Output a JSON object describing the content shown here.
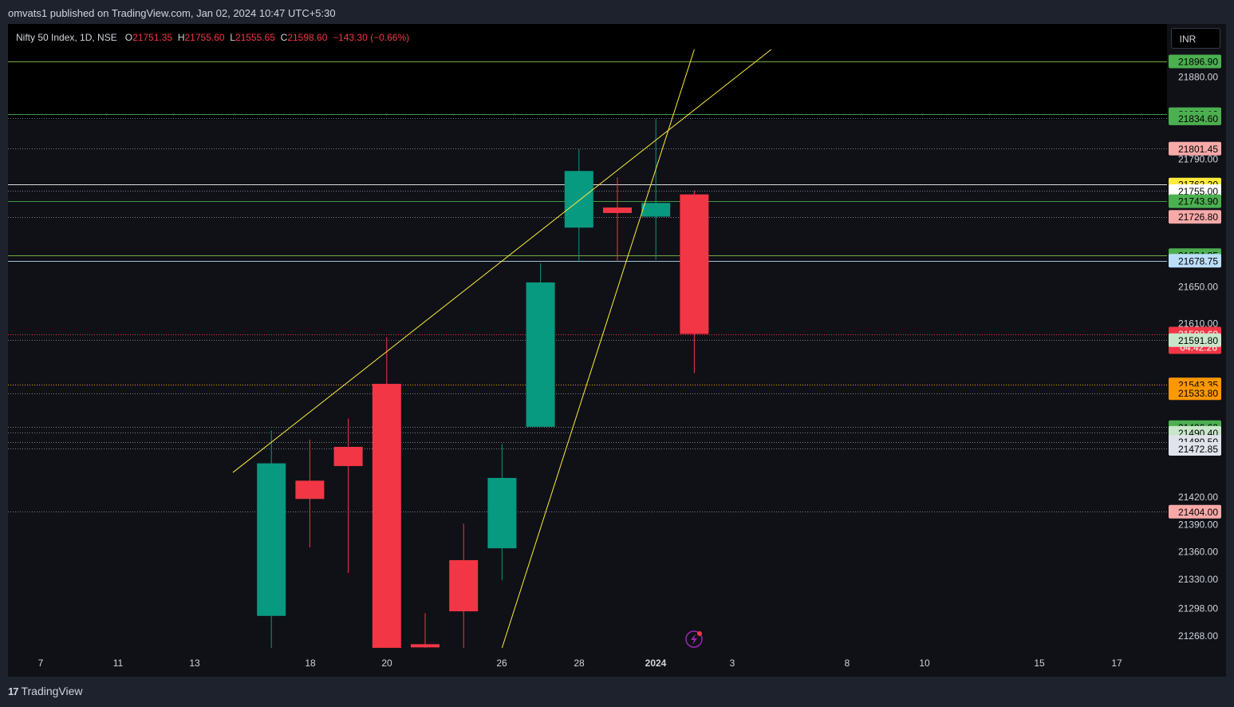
{
  "header": {
    "published": "omvats1 published on TradingView.com, Jan 02, 2024 10:47 UTC+5:30"
  },
  "legend": {
    "symbol": "Nifty 50 Index, 1D, NSE",
    "o_label": "O",
    "o_val": "21751.35",
    "h_label": "H",
    "h_val": "21755.60",
    "l_label": "L",
    "l_val": "21555.65",
    "c_label": "C",
    "c_val": "21598.60",
    "change": "−143.30 (−0.66%)"
  },
  "currency_button": "INR",
  "footer": {
    "brand": "TradingView"
  },
  "chart_data": {
    "type": "candlestick",
    "title": "Nifty 50 Index, 1D, NSE",
    "currency": "INR",
    "x_tick_labels": [
      "7",
      "11",
      "13",
      "18",
      "20",
      "26",
      "28",
      "2024",
      "3",
      "8",
      "10",
      "15",
      "17"
    ],
    "y_tick_labels": [
      "21880.00",
      "21790.00",
      "21650.00",
      "21610.00",
      "21420.00",
      "21390.00",
      "21360.00",
      "21330.00",
      "21298.00",
      "21268.00"
    ],
    "candles": [
      {
        "date": "2023-12-15",
        "open": 21290,
        "high": 21493,
        "low": 21255,
        "close": 21457
      },
      {
        "date": "2023-12-18",
        "open": 21438,
        "high": 21483,
        "low": 21365,
        "close": 21418
      },
      {
        "date": "2023-12-19",
        "open": 21475,
        "high": 21506,
        "low": 21337,
        "close": 21454
      },
      {
        "date": "2023-12-20",
        "open": 21544,
        "high": 21595,
        "low": 21255,
        "close": 21255
      },
      {
        "date": "2023-12-21",
        "open": 21259,
        "high": 21293,
        "low": 21255,
        "close": 21258
      },
      {
        "date": "2023-12-22",
        "open": 21351,
        "high": 21391,
        "low": 21255,
        "close": 21295
      },
      {
        "date": "2023-12-26",
        "open": 21364,
        "high": 21478,
        "low": 21329,
        "close": 21441
      },
      {
        "date": "2023-12-27",
        "open": 21497,
        "high": 21676,
        "low": 21497,
        "close": 21655
      },
      {
        "date": "2023-12-28",
        "open": 21715,
        "high": 21801,
        "low": 21678,
        "close": 21777
      },
      {
        "date": "2023-12-29",
        "open": 21737,
        "high": 21770,
        "low": 21678,
        "close": 21731
      },
      {
        "date": "2024-01-01",
        "open": 21727,
        "high": 21834,
        "low": 21680,
        "close": 21742
      },
      {
        "date": "2024-01-02",
        "open": 21751.35,
        "high": 21755.6,
        "low": 21555.65,
        "close": 21598.6
      }
    ],
    "price_levels": [
      {
        "value": "21896.90",
        "bg": "#4caf50",
        "fg": "#000000",
        "line": "#8bc34a",
        "style": "solid"
      },
      {
        "value": "21839.10",
        "bg": "#4caf50",
        "fg": "#000000",
        "line": "#4caf50",
        "style": "solid"
      },
      {
        "value": "21834.60",
        "bg": "#4caf50",
        "fg": "#000000",
        "line": "#787b86",
        "style": "dotted"
      },
      {
        "value": "21801.45",
        "bg": "#f7a9a8",
        "fg": "#000000",
        "line": "#787b86",
        "style": "dotted"
      },
      {
        "value": "21762.20",
        "bg": "#ffeb3b",
        "fg": "#000000",
        "line": "#ffffff",
        "style": "solid"
      },
      {
        "value": "21755.00",
        "bg": "#ffffff",
        "fg": "#000000",
        "line": "#787b86",
        "style": "dotted"
      },
      {
        "value": "21743.90",
        "bg": "#4caf50",
        "fg": "#000000",
        "line": "#4caf50",
        "style": "solid"
      },
      {
        "value": "21726.80",
        "bg": "#f7a9a8",
        "fg": "#000000",
        "line": "#787b86",
        "style": "dotted"
      },
      {
        "value": "21684.85",
        "bg": "#4caf50",
        "fg": "#000000",
        "line": "#8bc34a",
        "style": "solid"
      },
      {
        "value": "21678.75",
        "bg": "#bbdefb",
        "fg": "#000000",
        "line": "#bbdefb",
        "style": "solid"
      },
      {
        "value": "21598.60",
        "bg": "#f23645",
        "fg": "#ffffff",
        "line": "#f23645",
        "style": "dotted"
      },
      {
        "value": "21591.80",
        "bg": "#c8e6c9",
        "fg": "#000000",
        "line": "#787b86",
        "style": "dotted"
      },
      {
        "value": "21543.35",
        "bg": "#ff9800",
        "fg": "#000000",
        "line": "#ff9800",
        "style": "dotted"
      },
      {
        "value": "21533.80",
        "bg": "#ff9800",
        "fg": "#000000",
        "line": "#787b86",
        "style": "dotted"
      },
      {
        "value": "21496.60",
        "bg": "#4caf50",
        "fg": "#000000",
        "line": "#787b86",
        "style": "dotted"
      },
      {
        "value": "21490.40",
        "bg": "#c8e6c9",
        "fg": "#000000",
        "line": "#787b86",
        "style": "dotted"
      },
      {
        "value": "21480.50",
        "bg": "#e0e3eb",
        "fg": "#000000",
        "line": "#787b86",
        "style": "dotted"
      },
      {
        "value": "21472.85",
        "bg": "#e0e3eb",
        "fg": "#000000",
        "line": "#787b86",
        "style": "dotted"
      },
      {
        "value": "21404.00",
        "bg": "#f7a9a8",
        "fg": "#000000",
        "line": "#787b86",
        "style": "dotted"
      }
    ],
    "countdown": "04:42:26",
    "trendlines": [
      {
        "from": {
          "date": "2023-12-14",
          "price": 21447
        },
        "to": {
          "date": "2024-01-04",
          "price": 21910
        }
      },
      {
        "from": {
          "date": "2023-12-26",
          "price": 21255
        },
        "to": {
          "date": "2024-01-02",
          "price": 21910
        }
      }
    ],
    "colors": {
      "up": "#089981",
      "down": "#f23645",
      "trendline": "#ffeb3b",
      "axis_text": "#d1d4dc"
    }
  }
}
